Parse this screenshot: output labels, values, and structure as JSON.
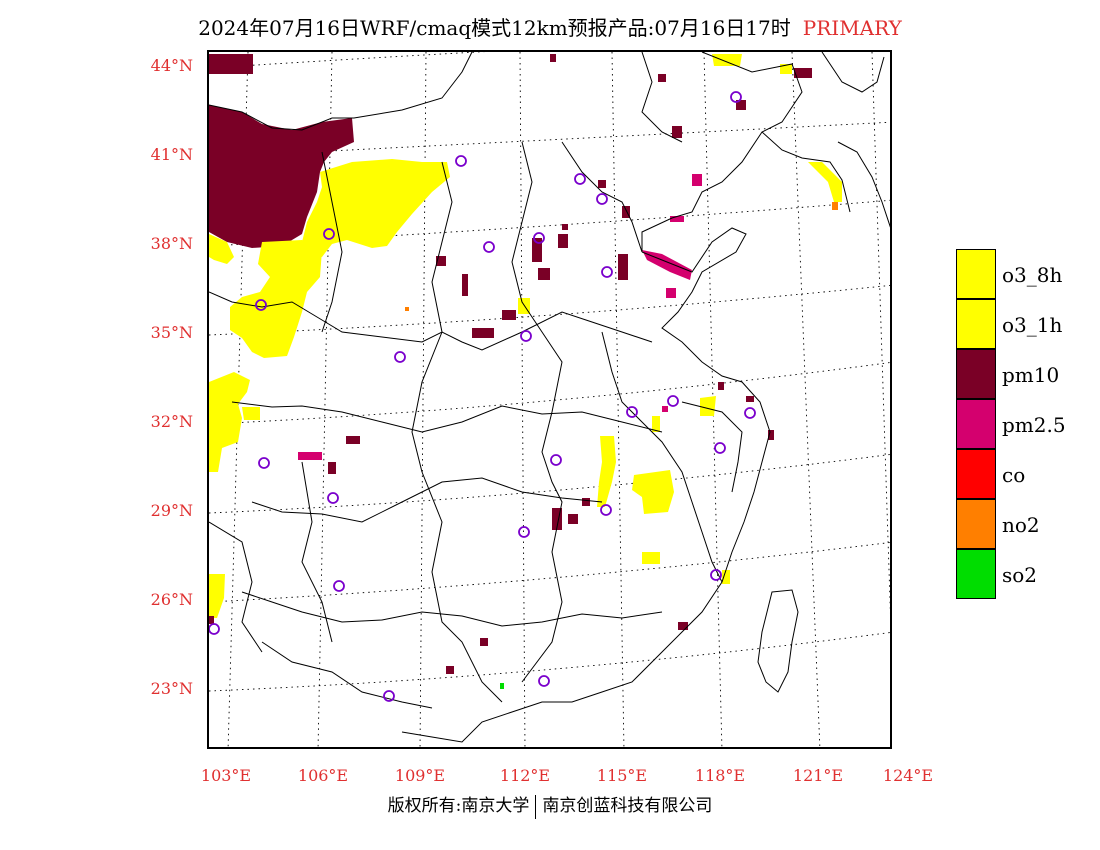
{
  "title": {
    "main": "2024年07月16日WRF/cmaq模式12km预报产品:07月16日17时",
    "tag": "PRIMARY",
    "tag_color": "#e03030"
  },
  "axes": {
    "lat_labels": [
      "44°N",
      "41°N",
      "38°N",
      "35°N",
      "32°N",
      "29°N",
      "26°N",
      "23°N"
    ],
    "lon_labels": [
      "103°E",
      "106°E",
      "109°E",
      "112°E",
      "115°E",
      "118°E",
      "121°E",
      "124°E"
    ],
    "label_color": "#e03030"
  },
  "legend": [
    {
      "label": "o3_8h",
      "color": "#ffff00"
    },
    {
      "label": "o3_1h",
      "color": "#ffff00"
    },
    {
      "label": "pm10",
      "color": "#7a0026"
    },
    {
      "label": "pm2.5",
      "color": "#d4006e"
    },
    {
      "label": "co",
      "color": "#ff0000"
    },
    {
      "label": "no2",
      "color": "#ff7f00"
    },
    {
      "label": "so2",
      "color": "#00dd00"
    }
  ],
  "footer": {
    "left": "版权所有:南京大学",
    "right": "南京创蓝科技有限公司"
  },
  "map": {
    "station_marker": "circle-icon",
    "station_color": "#7a00cc"
  }
}
